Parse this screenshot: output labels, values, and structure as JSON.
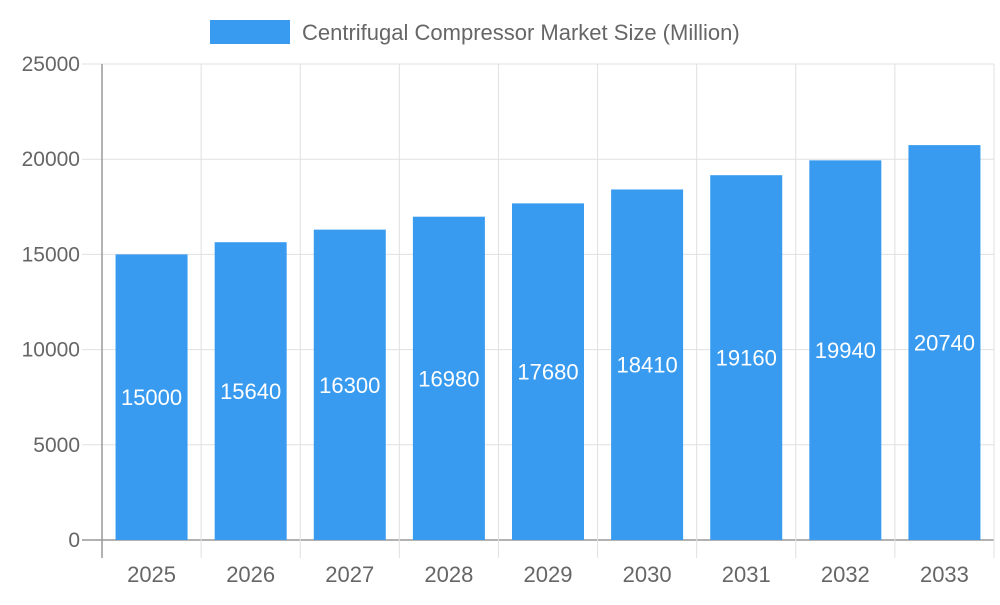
{
  "chart_data": {
    "type": "bar",
    "title": "",
    "xlabel": "",
    "ylabel": "",
    "categories": [
      "2025",
      "2026",
      "2027",
      "2028",
      "2029",
      "2030",
      "2031",
      "2032",
      "2033"
    ],
    "series": [
      {
        "name": "Centrifugal Compressor Market Size (Million)",
        "values": [
          15000,
          15640,
          16300,
          16980,
          17680,
          18410,
          19160,
          19940,
          20740
        ],
        "color": "#389bf0"
      }
    ],
    "ylim": [
      0,
      25000
    ],
    "yticks": [
      0,
      5000,
      10000,
      15000,
      20000,
      25000
    ],
    "grid": true,
    "legend": "top-center",
    "data_labels": true
  }
}
